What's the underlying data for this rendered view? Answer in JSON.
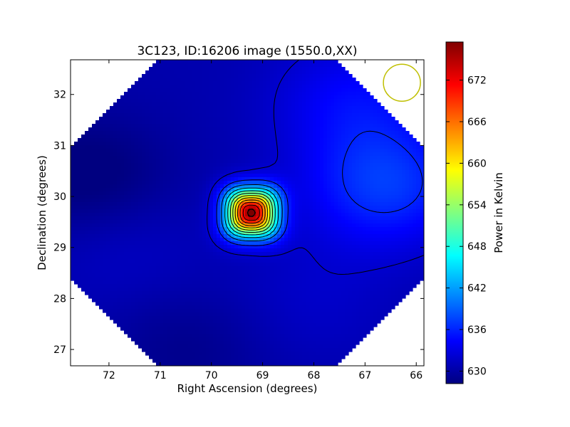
{
  "chart_data": {
    "type": "heatmap",
    "title": "3C123, ID:16206 image (1550.0,XX)",
    "xlabel": "Right Ascension (degrees)",
    "ylabel": "Declination (degrees)",
    "xlim": [
      72.75,
      65.85
    ],
    "ylim": [
      26.68,
      32.68
    ],
    "x_ticks": [
      72,
      71,
      70,
      69,
      68,
      67,
      66
    ],
    "y_ticks": [
      27,
      28,
      29,
      30,
      31,
      32
    ],
    "x_tick_labels": [
      "72",
      "71",
      "70",
      "69",
      "68",
      "67",
      "66"
    ],
    "y_tick_labels": [
      "27",
      "28",
      "29",
      "30",
      "31",
      "32"
    ],
    "grid": false,
    "colormap": "jet",
    "colorbar": {
      "label": "Power in Kelvin",
      "range": [
        628.2,
        677.5
      ],
      "ticks": [
        630,
        636,
        642,
        648,
        654,
        660,
        666,
        672
      ],
      "tick_labels": [
        "630",
        "636",
        "642",
        "648",
        "654",
        "660",
        "666",
        "672"
      ]
    },
    "source_peak": {
      "ra": 69.22,
      "dec": 29.68,
      "value": 677.5
    },
    "background": {
      "min": 628.2,
      "max": 640.5
    },
    "beam_circle": {
      "ra": 66.28,
      "dec": 32.23,
      "color": "#bfbf00"
    },
    "contour_levels": [
      632,
      636,
      640,
      644,
      648,
      652,
      656,
      660,
      664,
      668,
      672,
      676
    ]
  }
}
